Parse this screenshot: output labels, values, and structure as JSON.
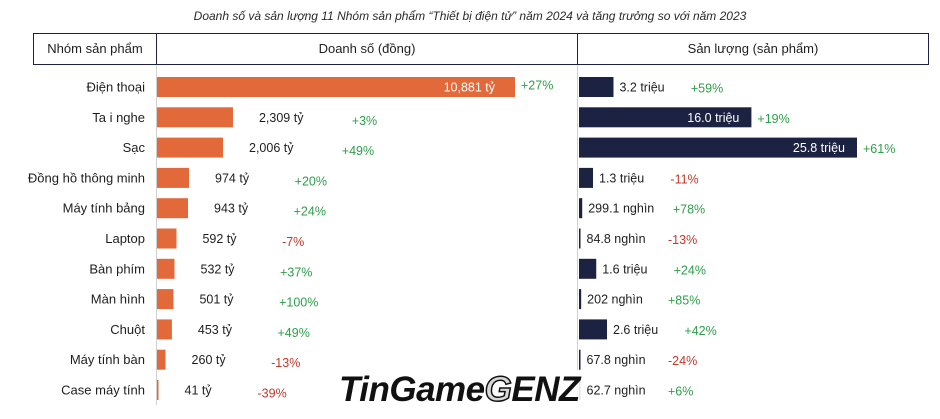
{
  "title": "Doanh số và sản lượng 11 Nhóm sản phẩm “Thiết bị điện tử” năm 2024 và tăng trưởng so với năm 2023",
  "header": {
    "category": "Nhóm sản phẩm",
    "revenue": "Doanh số (đồng)",
    "volume": "Sản lượng (sản phẩm)"
  },
  "watermark": {
    "text_main": "TinGame",
    "text_accent": "G",
    "text_tail": "ENZ"
  },
  "colors": {
    "revenue_bar": "#e2693a",
    "volume_bar": "#1c2242",
    "growth_positive": "#2e9e4a",
    "growth_negative": "#c0392b"
  },
  "chart_data": [
    {
      "type": "bar",
      "orientation": "horizontal",
      "name": "Doanh số (đồng)",
      "unit": "tỷ đồng",
      "categories": [
        "Điện thoại",
        "Ta i nghe",
        "Sạc",
        "Đồng hồ thông minh",
        "Máy tính bảng",
        "Laptop",
        "Bàn phím",
        "Màn hình",
        "Chuột",
        "Máy tính bàn",
        "Case máy tính"
      ],
      "values": [
        10881,
        2309,
        2006,
        974,
        943,
        592,
        532,
        501,
        453,
        260,
        41
      ],
      "value_labels": [
        "10,881 tỷ",
        "2,309 tỷ",
        "2,006 tỷ",
        "974 tỷ",
        "943 tỷ",
        "592 tỷ",
        "532 tỷ",
        "501 tỷ",
        "453 tỷ",
        "260 tỷ",
        "41 tỷ"
      ],
      "growth": [
        27,
        3,
        49,
        20,
        24,
        -7,
        37,
        100,
        49,
        -13,
        -39
      ],
      "growth_labels": [
        "+27%",
        "+3%",
        "+49%",
        "+20%",
        "+24%",
        "-7%",
        "+37%",
        "+100%",
        "+49%",
        "-13%",
        "-39%"
      ]
    },
    {
      "type": "bar",
      "orientation": "horizontal",
      "name": "Sản lượng (sản phẩm)",
      "unit": "sản phẩm",
      "categories": [
        "Điện thoại",
        "Ta i nghe",
        "Sạc",
        "Đồng hồ thông minh",
        "Máy tính bảng",
        "Laptop",
        "Bàn phím",
        "Màn hình",
        "Chuột",
        "Máy tính bàn",
        "Case máy tính"
      ],
      "values": [
        3200000,
        16000000,
        25800000,
        1300000,
        299100,
        84800,
        1600000,
        202000,
        2600000,
        67800,
        62700
      ],
      "value_labels": [
        "3.2 triệu",
        "16.0 triệu",
        "25.8 triệu",
        "1.3 triệu",
        "299.1 nghìn",
        "84.8 nghìn",
        "1.6 triệu",
        "202 nghìn",
        "2.6 triệu",
        "67.8 nghìn",
        "62.7 nghìn"
      ],
      "growth": [
        59,
        19,
        61,
        -11,
        78,
        -13,
        24,
        85,
        42,
        -24,
        6
      ],
      "growth_labels": [
        "+59%",
        "+19%",
        "+61%",
        "-11%",
        "+78%",
        "-13%",
        "+24%",
        "+85%",
        "+42%",
        "-24%",
        "+6%"
      ]
    }
  ]
}
